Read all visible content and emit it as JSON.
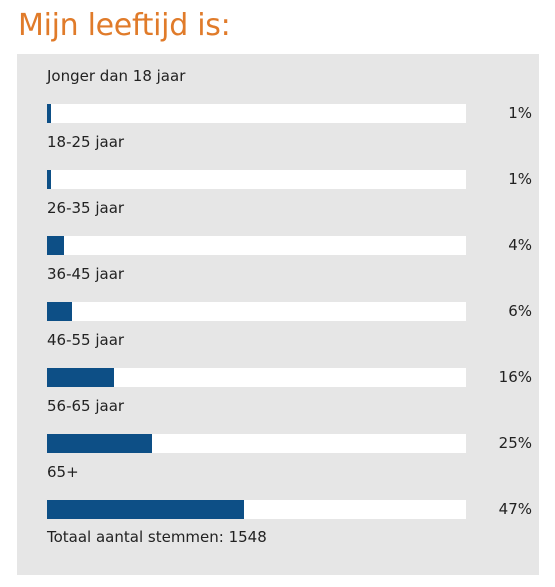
{
  "poll": {
    "title": "Mijn leeftijd is:",
    "options": [
      {
        "label": "Jonger dan 18 jaar",
        "percent_text": "1%",
        "value": 0.01
      },
      {
        "label": "18-25 jaar",
        "percent_text": "1%",
        "value": 0.01
      },
      {
        "label": "26-35 jaar",
        "percent_text": "4%",
        "value": 0.04
      },
      {
        "label": "36-45 jaar",
        "percent_text": "6%",
        "value": 0.06
      },
      {
        "label": "46-55 jaar",
        "percent_text": "16%",
        "value": 0.16
      },
      {
        "label": "56-65 jaar",
        "percent_text": "25%",
        "value": 0.25
      },
      {
        "label": "65+",
        "percent_text": "47%",
        "value": 0.47
      }
    ],
    "total_text": "Totaal aantal stemmen: 1548"
  },
  "colors": {
    "title": "#e07b2a",
    "bar": "#0d4f86",
    "panel": "#e6e6e6",
    "track": "#ffffff"
  }
}
